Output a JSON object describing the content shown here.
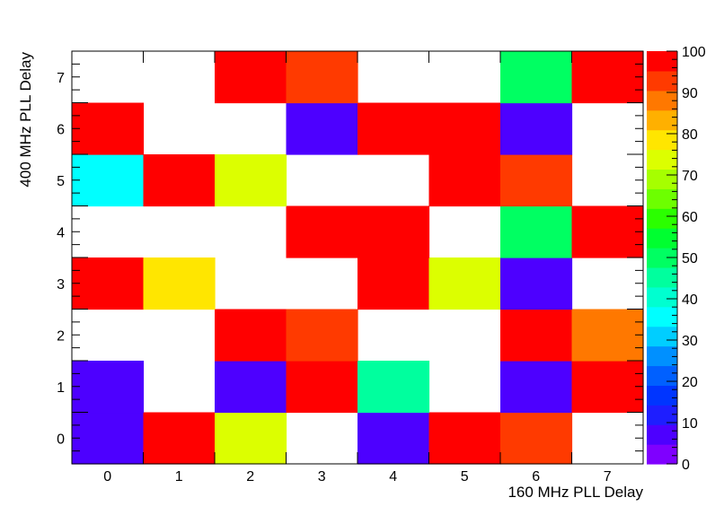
{
  "chart_data": {
    "type": "heatmap",
    "title": "",
    "xlabel": "160 MHz PLL Delay",
    "ylabel": "400 MHz PLL Delay",
    "x_categories": [
      "0",
      "1",
      "2",
      "3",
      "4",
      "5",
      "6",
      "7"
    ],
    "y_categories": [
      "0",
      "1",
      "2",
      "3",
      "4",
      "5",
      "6",
      "7"
    ],
    "xlim": [
      -0.5,
      7.5
    ],
    "ylim": [
      -0.5,
      7.5
    ],
    "zlim": [
      0,
      100
    ],
    "colorbar_ticks": [
      "0",
      "10",
      "20",
      "30",
      "40",
      "50",
      "60",
      "70",
      "80",
      "90",
      "100"
    ],
    "empty_cells": "blank",
    "values": [
      [
        5,
        100,
        75,
        null,
        5,
        100,
        95,
        null
      ],
      [
        5,
        null,
        5,
        100,
        45,
        null,
        5,
        100
      ],
      [
        null,
        null,
        100,
        95,
        null,
        null,
        100,
        88
      ],
      [
        100,
        78,
        null,
        null,
        100,
        72,
        5,
        null
      ],
      [
        null,
        null,
        null,
        100,
        100,
        null,
        50,
        100
      ],
      [
        38,
        100,
        72,
        null,
        null,
        100,
        95,
        null
      ],
      [
        100,
        null,
        null,
        8,
        100,
        100,
        5,
        null
      ],
      [
        null,
        null,
        100,
        95,
        null,
        null,
        50,
        100
      ]
    ],
    "palette": [
      "#7f00ff",
      "#4d00ff",
      "#1e1eff",
      "#0035ff",
      "#0060ff",
      "#0090ff",
      "#00ceff",
      "#00ffff",
      "#00ffd0",
      "#00ff9e",
      "#00ff62",
      "#00ff30",
      "#2bff00",
      "#6dff00",
      "#a6ff00",
      "#dcff00",
      "#ffe600",
      "#ffb000",
      "#ff7800",
      "#ff3a00",
      "#ff0000"
    ],
    "grid": false,
    "legend": "colorbar-right"
  }
}
